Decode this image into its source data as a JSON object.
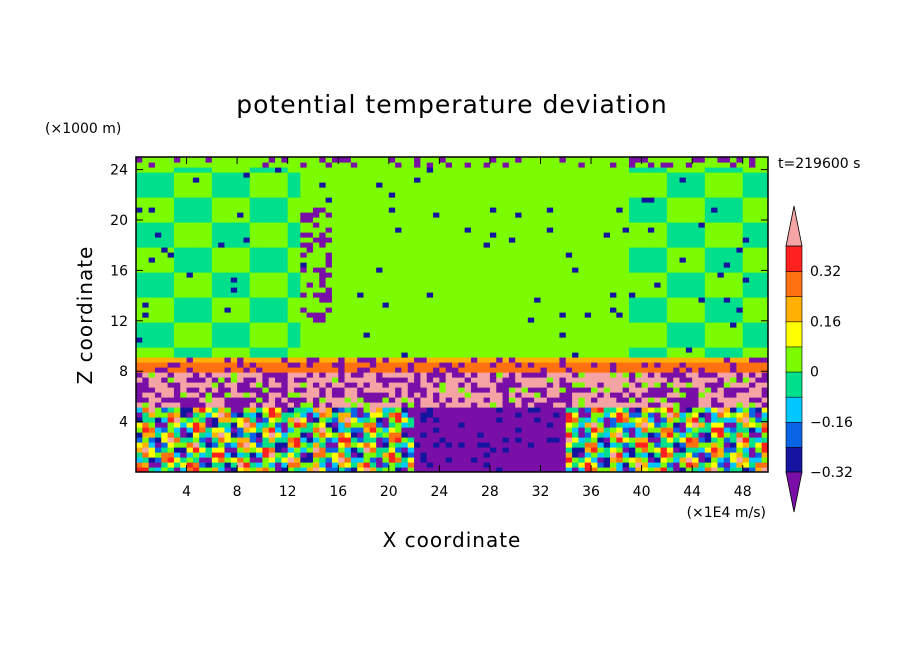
{
  "chart_data": {
    "type": "heatmap",
    "title": "potential temperature deviation",
    "xlabel": "X coordinate",
    "ylabel": "Z coordinate",
    "x_unit": "(×1E4 m/s)",
    "y_unit": "(×1000 m)",
    "time_label": "t=219600 s",
    "xlim": [
      0,
      50
    ],
    "ylim": [
      0,
      25
    ],
    "x_ticks": [
      4,
      8,
      12,
      16,
      20,
      24,
      28,
      32,
      36,
      40,
      44,
      48
    ],
    "y_ticks": [
      4,
      8,
      12,
      16,
      20,
      24
    ],
    "colorbar": {
      "levels": [
        -0.4,
        -0.32,
        -0.24,
        -0.16,
        -0.08,
        0,
        0.08,
        0.16,
        0.24,
        0.32,
        0.4
      ],
      "tick_labels": [
        "0.32",
        "0.16",
        "0",
        "−0.16",
        "−0.32"
      ],
      "tick_values": [
        0.32,
        0.16,
        0,
        -0.16,
        -0.32
      ],
      "colors_low_to_high": [
        "#7a0fa8",
        "#1414a0",
        "#0a64e6",
        "#00c8ff",
        "#00e08c",
        "#7cfc00",
        "#ffff00",
        "#ffb000",
        "#ff7010",
        "#ff2020",
        "#f4a4a4"
      ],
      "extends": "both"
    }
  }
}
